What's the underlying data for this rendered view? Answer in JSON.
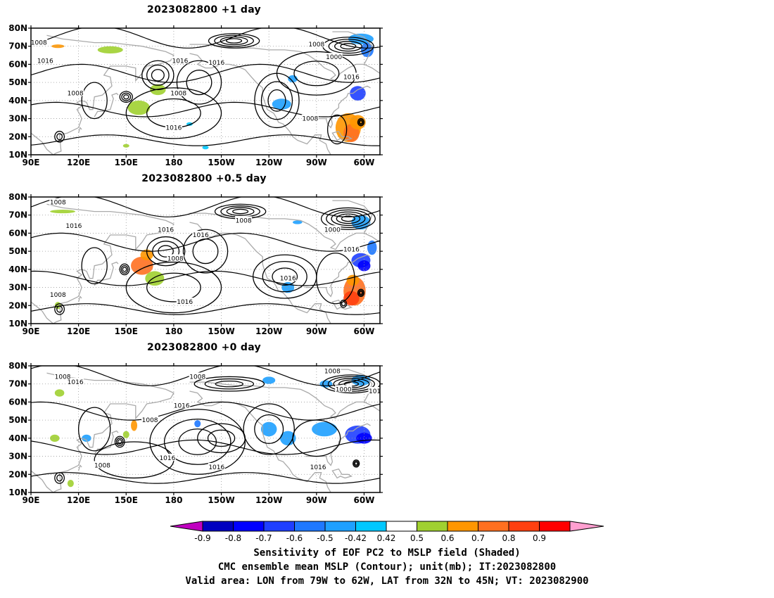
{
  "panels": [
    {
      "title": "2023082800  +1  day",
      "lead": "+1 day",
      "contour_labels": [
        "1008",
        "1016",
        "1016",
        "1016",
        "1008",
        "1000",
        "1008",
        "1008",
        "1016",
        "1008",
        "1016"
      ]
    },
    {
      "title": "2023082800  +0.5  day",
      "lead": "+0.5 day",
      "contour_labels": [
        "1008",
        "1016",
        "1016",
        "1016",
        "1008",
        "1008",
        "1000",
        "1016",
        "1008",
        "1016",
        "1016"
      ]
    },
    {
      "title": "2023082800  +0  day",
      "lead": "+0 day",
      "contour_labels": [
        "1008",
        "1016",
        "1008",
        "1016",
        "1008",
        "1000",
        "1016",
        "1016",
        "1008",
        "1016",
        "1016",
        "1008"
      ]
    }
  ],
  "axes": {
    "lat_ticks": [
      "80N",
      "70N",
      "60N",
      "50N",
      "40N",
      "30N",
      "20N",
      "10N"
    ],
    "lon_ticks": [
      "90E",
      "120E",
      "150E",
      "180",
      "150W",
      "120W",
      "90W",
      "60W"
    ],
    "lat_range": [
      10,
      80
    ],
    "lon_range_deg_east": [
      90,
      310
    ]
  },
  "colorbar": {
    "levels": [
      "-0.9",
      "-0.8",
      "-0.7",
      "-0.6",
      "-0.5",
      "-0.42",
      "0.42",
      "0.5",
      "0.6",
      "0.7",
      "0.8",
      "0.9"
    ],
    "colors": [
      "#c000c0",
      "#0000c0",
      "#0000ff",
      "#1f3fff",
      "#1e78ff",
      "#1ea0ff",
      "#00c8ff",
      "#ffffff",
      "#a0d030",
      "#ff9600",
      "#ff7020",
      "#ff4010",
      "#ff0000",
      "#ff9fd0"
    ]
  },
  "captions": {
    "line1": "Sensitivity of EOF PC2 to MSLP field (Shaded)",
    "line2": "CMC ensemble mean MSLP (Contour); unit(mb); IT:2023082800",
    "line3": "Valid area: LON from 79W to 62W, LAT from 32N to 45N; VT: 2023082900"
  }
}
